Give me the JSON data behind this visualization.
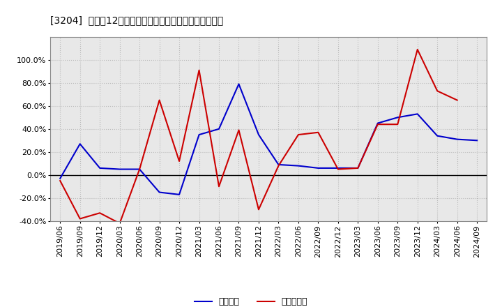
{
  "title": "[3204]  利益の12か月移動合計の対前年同期増減率の推移",
  "x_labels": [
    "2019/06",
    "2019/09",
    "2019/12",
    "2020/03",
    "2020/06",
    "2020/09",
    "2020/12",
    "2021/03",
    "2021/06",
    "2021/09",
    "2021/12",
    "2022/03",
    "2022/06",
    "2022/09",
    "2022/12",
    "2023/03",
    "2023/06",
    "2023/09",
    "2023/12",
    "2024/03",
    "2024/06",
    "2024/09"
  ],
  "blue_values": [
    -3,
    27,
    6,
    5,
    5,
    -15,
    -17,
    35,
    40,
    79,
    35,
    9,
    8,
    6,
    6,
    6,
    45,
    50,
    53,
    34,
    31,
    30
  ],
  "red_values": [
    -5,
    -38,
    -33,
    -42,
    5,
    65,
    12,
    91,
    -10,
    39,
    -30,
    8,
    35,
    37,
    5,
    6,
    44,
    44,
    109,
    73,
    65,
    null
  ],
  "blue_color": "#0000cc",
  "red_color": "#cc0000",
  "ylim": [
    -40,
    120
  ],
  "yticks": [
    -40,
    -20,
    0,
    20,
    40,
    60,
    80,
    100
  ],
  "background_color": "#ffffff",
  "plot_bg_color": "#e8e8e8",
  "grid_color": "#bbbbbb",
  "legend_blue": "経常利益",
  "legend_red": "当期純利益"
}
